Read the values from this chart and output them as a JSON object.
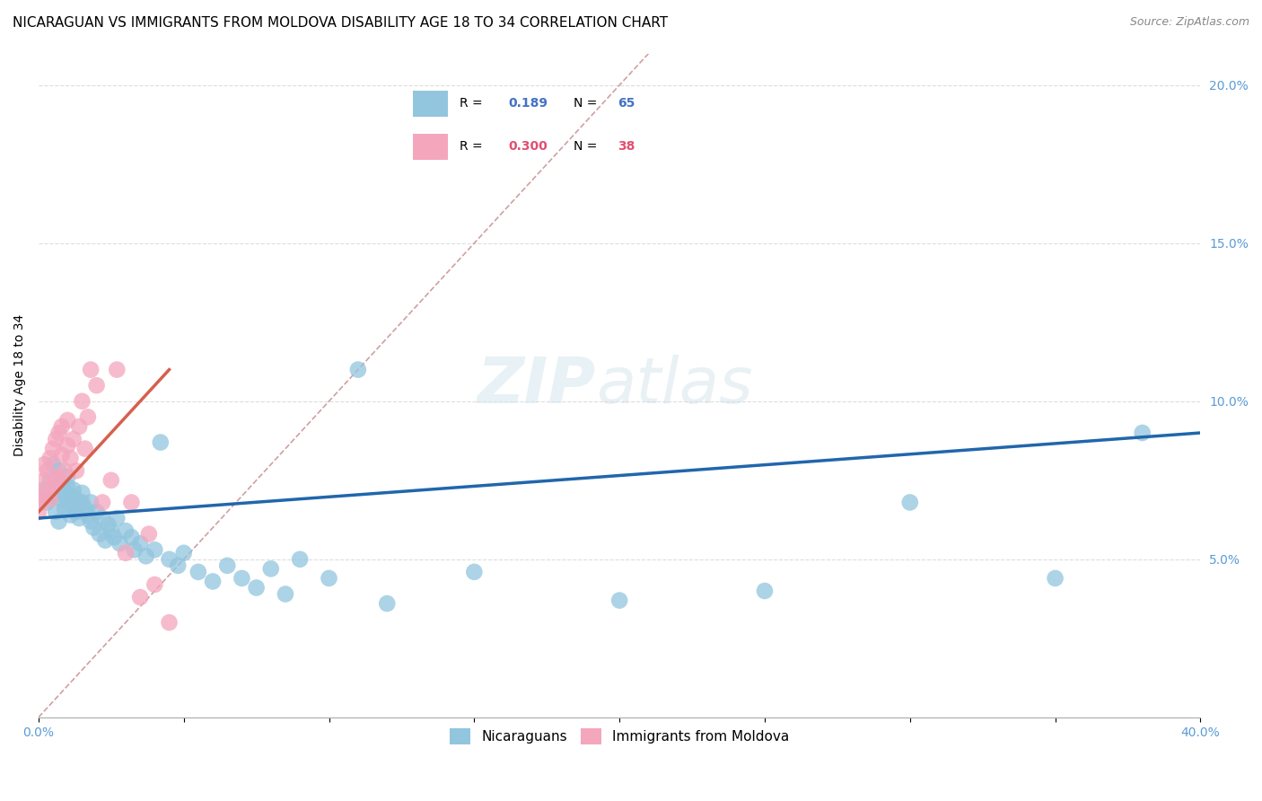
{
  "title": "NICARAGUAN VS IMMIGRANTS FROM MOLDOVA DISABILITY AGE 18 TO 34 CORRELATION CHART",
  "source": "Source: ZipAtlas.com",
  "ylabel": "Disability Age 18 to 34",
  "xlim": [
    0.0,
    0.4
  ],
  "ylim": [
    0.0,
    0.21
  ],
  "xticks": [
    0.0,
    0.05,
    0.1,
    0.15,
    0.2,
    0.25,
    0.3,
    0.35,
    0.4
  ],
  "xticklabels": [
    "0.0%",
    "",
    "",
    "",
    "",
    "",
    "",
    "",
    "40.0%"
  ],
  "yticks": [
    0.05,
    0.1,
    0.15,
    0.2
  ],
  "yticklabels": [
    "5.0%",
    "10.0%",
    "15.0%",
    "20.0%"
  ],
  "color_blue": "#92c5de",
  "color_pink": "#f4a6bd",
  "color_blue_line": "#2166ac",
  "color_pink_line": "#d6604d",
  "color_diag": "#d0a0a0",
  "watermark_zip": "ZIP",
  "watermark_atlas": "atlas",
  "blue_scatter_x": [
    0.002,
    0.003,
    0.004,
    0.005,
    0.005,
    0.006,
    0.007,
    0.007,
    0.008,
    0.008,
    0.009,
    0.009,
    0.01,
    0.01,
    0.01,
    0.011,
    0.011,
    0.012,
    0.012,
    0.013,
    0.013,
    0.014,
    0.015,
    0.015,
    0.016,
    0.017,
    0.018,
    0.018,
    0.019,
    0.02,
    0.021,
    0.022,
    0.023,
    0.024,
    0.025,
    0.026,
    0.027,
    0.028,
    0.03,
    0.032,
    0.033,
    0.035,
    0.037,
    0.04,
    0.042,
    0.045,
    0.048,
    0.05,
    0.055,
    0.06,
    0.065,
    0.07,
    0.075,
    0.08,
    0.085,
    0.09,
    0.1,
    0.11,
    0.12,
    0.15,
    0.2,
    0.25,
    0.3,
    0.35,
    0.38
  ],
  "blue_scatter_y": [
    0.072,
    0.068,
    0.075,
    0.07,
    0.08,
    0.065,
    0.078,
    0.062,
    0.074,
    0.069,
    0.071,
    0.066,
    0.073,
    0.068,
    0.076,
    0.064,
    0.07,
    0.067,
    0.072,
    0.065,
    0.069,
    0.063,
    0.071,
    0.068,
    0.066,
    0.064,
    0.062,
    0.068,
    0.06,
    0.065,
    0.058,
    0.063,
    0.056,
    0.061,
    0.059,
    0.057,
    0.063,
    0.055,
    0.059,
    0.057,
    0.053,
    0.055,
    0.051,
    0.053,
    0.087,
    0.05,
    0.048,
    0.052,
    0.046,
    0.043,
    0.048,
    0.044,
    0.041,
    0.047,
    0.039,
    0.05,
    0.044,
    0.11,
    0.036,
    0.046,
    0.037,
    0.04,
    0.068,
    0.044,
    0.09
  ],
  "pink_scatter_x": [
    0.0,
    0.0,
    0.001,
    0.002,
    0.002,
    0.003,
    0.003,
    0.004,
    0.004,
    0.005,
    0.005,
    0.006,
    0.006,
    0.007,
    0.007,
    0.008,
    0.008,
    0.009,
    0.01,
    0.01,
    0.011,
    0.012,
    0.013,
    0.014,
    0.015,
    0.016,
    0.017,
    0.018,
    0.02,
    0.022,
    0.025,
    0.027,
    0.03,
    0.032,
    0.035,
    0.038,
    0.04,
    0.045
  ],
  "pink_scatter_y": [
    0.065,
    0.07,
    0.068,
    0.075,
    0.08,
    0.072,
    0.078,
    0.069,
    0.082,
    0.073,
    0.085,
    0.075,
    0.088,
    0.076,
    0.09,
    0.083,
    0.092,
    0.078,
    0.086,
    0.094,
    0.082,
    0.088,
    0.078,
    0.092,
    0.1,
    0.085,
    0.095,
    0.11,
    0.105,
    0.068,
    0.075,
    0.11,
    0.052,
    0.068,
    0.038,
    0.058,
    0.042,
    0.03
  ],
  "background_color": "#ffffff",
  "title_fontsize": 11,
  "axis_label_fontsize": 10,
  "tick_fontsize": 10,
  "legend_blue_r": "R = ",
  "legend_blue_v": "0.189",
  "legend_blue_n": "N = ",
  "legend_blue_c": "65",
  "legend_pink_r": "R = ",
  "legend_pink_v": "0.300",
  "legend_pink_n": "N = ",
  "legend_pink_c": "38",
  "legend_blue_color": "#4472c4",
  "legend_pink_num_color": "#e05070",
  "legend_blue_num_color": "#4472c4"
}
